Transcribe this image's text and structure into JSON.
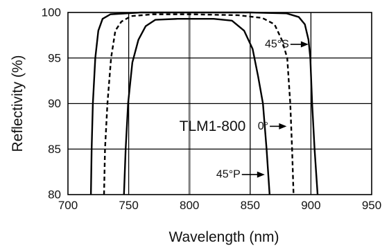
{
  "chart_data": {
    "type": "line",
    "title": "",
    "xlabel": "Wavelength (nm)",
    "ylabel": "Reflectivity (%)",
    "xlim": [
      700,
      950
    ],
    "ylim": [
      80,
      100
    ],
    "xticks": [
      700,
      750,
      800,
      850,
      900,
      950
    ],
    "yticks": [
      80,
      85,
      90,
      95,
      100
    ],
    "xtick_labels": [
      "700",
      "750",
      "800",
      "850",
      "900",
      "950"
    ],
    "ytick_labels": [
      "80",
      "85",
      "90",
      "95",
      "100"
    ],
    "grid": true,
    "legend": "none",
    "series": [
      {
        "name": "45°S",
        "style": "solid",
        "color": "#000000",
        "points": [
          [
            718.9,
            80.0
          ],
          [
            719.5,
            85.0
          ],
          [
            720.5,
            90.0
          ],
          [
            722.5,
            95.0
          ],
          [
            725.0,
            98.0
          ],
          [
            728.5,
            99.3
          ],
          [
            735.0,
            99.8
          ],
          [
            760.0,
            100.0
          ],
          [
            800.0,
            100.0
          ],
          [
            850.0,
            100.0
          ],
          [
            880.0,
            99.9
          ],
          [
            890.0,
            99.5
          ],
          [
            895.0,
            98.7
          ],
          [
            898.0,
            97.0
          ],
          [
            899.5,
            95.0
          ],
          [
            901.0,
            90.0
          ],
          [
            903.0,
            85.0
          ],
          [
            905.5,
            80.0
          ]
        ]
      },
      {
        "name": "0°",
        "style": "dashed",
        "color": "#000000",
        "points": [
          [
            729.7,
            80.0
          ],
          [
            730.5,
            85.0
          ],
          [
            732.5,
            90.0
          ],
          [
            735.5,
            95.0
          ],
          [
            739.0,
            98.0
          ],
          [
            744.0,
            99.0
          ],
          [
            752.0,
            99.6
          ],
          [
            770.0,
            99.8
          ],
          [
            800.0,
            99.8
          ],
          [
            840.0,
            99.7
          ],
          [
            860.0,
            99.4
          ],
          [
            870.0,
            98.7
          ],
          [
            876.0,
            97.0
          ],
          [
            880.5,
            95.0
          ],
          [
            883.0,
            90.0
          ],
          [
            884.5,
            85.0
          ],
          [
            885.7,
            80.0
          ]
        ]
      },
      {
        "name": "45°P",
        "style": "solid",
        "color": "#000000",
        "points": [
          [
            746.1,
            80.0
          ],
          [
            747.5,
            85.0
          ],
          [
            749.5,
            90.0
          ],
          [
            753.0,
            94.5
          ],
          [
            758.0,
            97.0
          ],
          [
            764.0,
            98.5
          ],
          [
            772.0,
            99.2
          ],
          [
            790.0,
            99.3
          ],
          [
            820.0,
            99.3
          ],
          [
            835.0,
            99.1
          ],
          [
            845.0,
            98.0
          ],
          [
            852.0,
            96.0
          ],
          [
            856.5,
            93.0
          ],
          [
            860.5,
            90.0
          ],
          [
            863.5,
            85.0
          ],
          [
            866.0,
            80.0
          ]
        ]
      }
    ],
    "annotations": [
      {
        "text": "45°S",
        "x": 882,
        "y": 96.5,
        "arrow_to": [
          898,
          96.5
        ]
      },
      {
        "text": "0°",
        "x": 865,
        "y": 87.5,
        "arrow_to": [
          880,
          87.5
        ]
      },
      {
        "text": "45°P",
        "x": 842,
        "y": 82.2,
        "arrow_to": [
          862,
          82.2
        ]
      }
    ],
    "inline_label": {
      "text": "TLM1-800",
      "x": 819,
      "y": 87.5
    }
  }
}
